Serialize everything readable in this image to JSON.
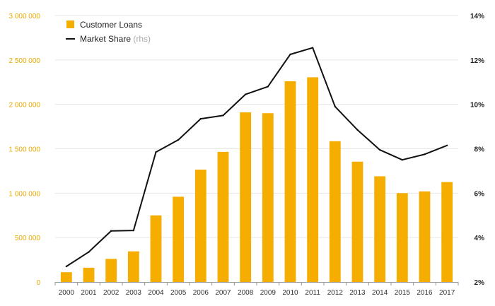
{
  "chart_data": {
    "type": "bar+line",
    "categories": [
      "2000",
      "2001",
      "2002",
      "2003",
      "2004",
      "2005",
      "2006",
      "2007",
      "2008",
      "2009",
      "2010",
      "2011",
      "2012",
      "2013",
      "2014",
      "2015",
      "2016",
      "2017"
    ],
    "series": [
      {
        "name": "Customer Loans",
        "type": "bar",
        "axis": "left",
        "values": [
          110000,
          160000,
          260000,
          345000,
          750000,
          960000,
          1265000,
          1465000,
          1910000,
          1900000,
          2260000,
          2305000,
          1585000,
          1355000,
          1190000,
          1000000,
          1020000,
          1125000
        ]
      },
      {
        "name": "Market Share",
        "type": "line",
        "axis": "right",
        "values": [
          2.7,
          3.35,
          4.3,
          4.32,
          7.85,
          8.4,
          9.35,
          9.5,
          10.45,
          10.8,
          12.25,
          12.55,
          9.9,
          8.85,
          7.95,
          7.5,
          7.75,
          8.15
        ]
      }
    ],
    "legend": {
      "bar_label": "Customer Loans",
      "line_label": "Market Share",
      "line_note": "(rhs)",
      "position": "top-left"
    },
    "y_left": {
      "min": 0,
      "max": 3000000,
      "ticks": [
        0,
        500000,
        1000000,
        1500000,
        2000000,
        2500000,
        3000000
      ],
      "tick_labels": [
        "0",
        "500 000",
        "1 000 000",
        "1 500 000",
        "2 000 000",
        "2 500 000",
        "3 000 000"
      ]
    },
    "y_right": {
      "min": 2,
      "max": 14,
      "ticks": [
        2,
        4,
        6,
        8,
        10,
        12,
        14
      ],
      "tick_labels": [
        "2%",
        "4%",
        "6%",
        "8%",
        "10%",
        "12%",
        "14%"
      ]
    },
    "grid": true
  },
  "colors": {
    "bar": "#f5ae00",
    "line": "#111111",
    "left_ticks": "#e8a800",
    "grid": "#e6e6e6",
    "axis": "#999999"
  }
}
